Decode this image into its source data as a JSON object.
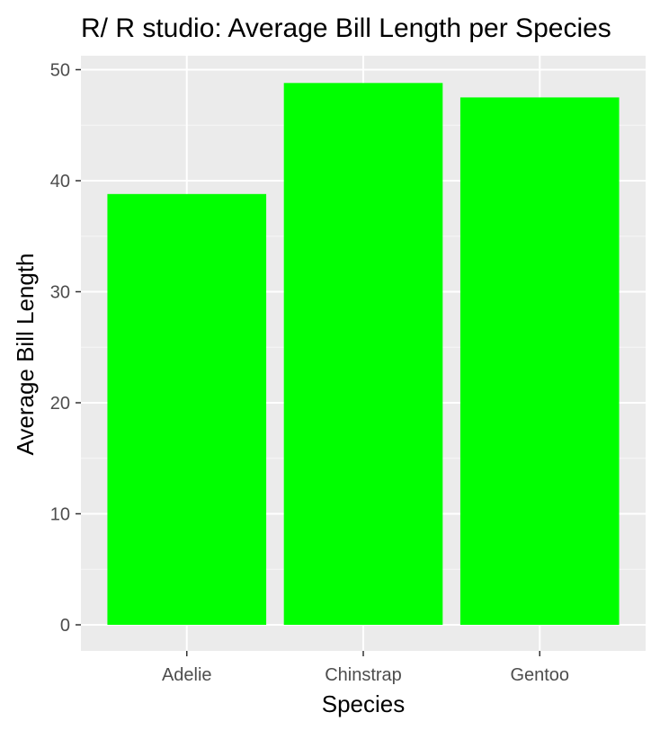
{
  "chart_data": {
    "type": "bar",
    "title": "R/ R studio: Average Bill Length per Species",
    "xlabel": "Species",
    "ylabel": "Average Bill Length",
    "categories": [
      "Adelie",
      "Chinstrap",
      "Gentoo"
    ],
    "values": [
      38.8,
      48.8,
      47.5
    ],
    "ylim": [
      0,
      50
    ],
    "yticks": [
      0,
      10,
      20,
      30,
      40,
      50
    ],
    "grid": true,
    "legend": "none",
    "colors": {
      "bar": "#00ff00",
      "panel": "#ebebeb",
      "grid_major": "#ffffff",
      "grid_minor": "#f7f7f7",
      "tick_text": "#4d4d4d",
      "axis_tick": "#333333"
    }
  }
}
